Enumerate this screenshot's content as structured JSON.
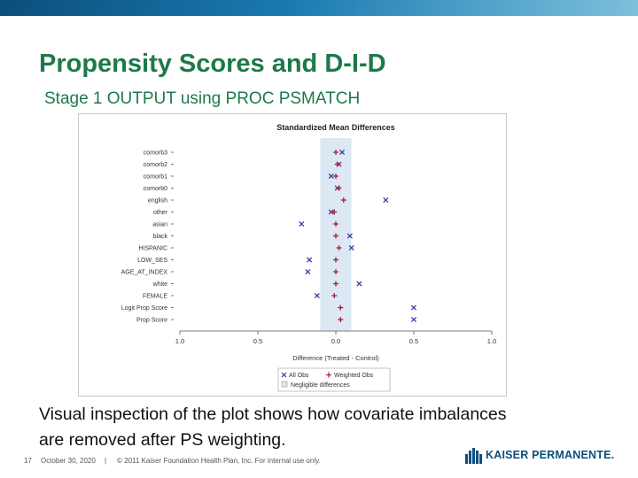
{
  "slide": {
    "title": "Propensity Scores and D-I-D",
    "subtitle": "Stage 1 OUTPUT using PROC PSMATCH",
    "body": "Visual inspection of the plot shows how covariate imbalances are removed after PS weighting.",
    "footer": {
      "page_number": "17",
      "date": "October 30, 2020",
      "separator": "|",
      "copyright": "© 2011 Kaiser Foundation Health Plan, Inc. For internal use only."
    },
    "logo_text": "KAISER PERMANENTE.",
    "colors": {
      "title_green": "#1c7a4a",
      "all_obs": "#3a3a9a",
      "weighted_obs": "#b0182e",
      "band": "#dde8f5"
    }
  },
  "chart_data": {
    "type": "scatter",
    "title": "Standardized Mean Differences",
    "xlabel": "Difference (Treated - Control)",
    "xlim": [
      -1.0,
      1.0
    ],
    "xticks": [
      -1.0,
      -0.5,
      0.0,
      0.5,
      1.0
    ],
    "xtick_labels": [
      "1.0",
      "0.5",
      "0.0",
      "0.5",
      "1.0"
    ],
    "negligible_band": [
      -0.1,
      0.1
    ],
    "categories": [
      "comorb3",
      "comorb2",
      "comorb1",
      "comorb0",
      "english",
      "other",
      "asian",
      "black",
      "HISPANIC",
      "LOW_SES",
      "AGE_AT_INDEX",
      "white",
      "FEMALE",
      "Logit Prop Score",
      "Prop Score"
    ],
    "series": [
      {
        "name": "All Obs",
        "marker": "x",
        "values": [
          0.04,
          0.02,
          -0.03,
          0.01,
          0.32,
          -0.03,
          -0.22,
          0.09,
          0.1,
          -0.17,
          -0.18,
          0.15,
          -0.12,
          0.5,
          0.5
        ]
      },
      {
        "name": "Weighted Obs",
        "marker": "+",
        "values": [
          0.0,
          0.01,
          0.0,
          0.02,
          0.05,
          -0.01,
          0.0,
          0.0,
          0.02,
          0.0,
          0.0,
          0.0,
          -0.01,
          0.03,
          0.03
        ]
      }
    ],
    "legend": {
      "position": "bottom",
      "items": [
        "All Obs",
        "Weighted Obs",
        "Negligible differences"
      ]
    }
  }
}
